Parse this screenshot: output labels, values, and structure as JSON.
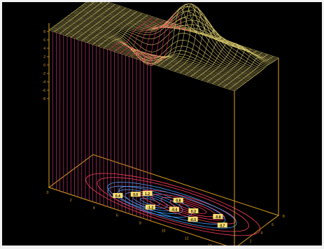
{
  "chart_data": {
    "type": "surface3d-contour",
    "title": "",
    "xlabel": "",
    "ylabel": "",
    "zlabel": "",
    "colors": {
      "background": "#000000",
      "axes": "#e0a020",
      "mesh_high": "#ffff80",
      "mesh_mid": "#e0d070",
      "mesh_low": "#ff3060",
      "drop_lines": "#e04080",
      "contour_positive": "#ff4060",
      "contour_negative": "#40a0ff",
      "contour_label_bg": "#ffe070"
    },
    "z_ticks": [
      "8",
      "6",
      "4",
      "2",
      "0",
      "-2",
      "-4",
      "-6",
      "-8"
    ],
    "x_ticks": [
      "0",
      "2",
      "4",
      "6",
      "8",
      "10",
      "12",
      "14",
      "16"
    ],
    "y_ticks": [
      "0",
      "2",
      "4",
      "6",
      "8"
    ],
    "contour_labels": [
      "0.4",
      "1.2",
      "-1.2",
      "0.8",
      "0.3",
      "-0.3",
      "-0.8",
      "0.0",
      "-0.4",
      "0.7"
    ]
  }
}
